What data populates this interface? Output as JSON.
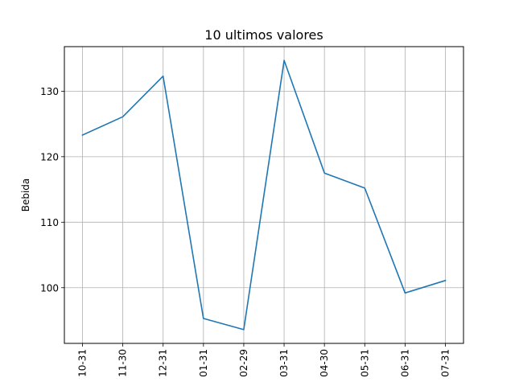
{
  "chart_data": {
    "type": "line",
    "title": "10 ultimos valores",
    "xlabel": "",
    "ylabel": "Bebida",
    "categories": [
      "10-31",
      "11-30",
      "12-31",
      "01-31",
      "02-29",
      "03-31",
      "04-30",
      "05-31",
      "06-31",
      "07-31"
    ],
    "series": [
      {
        "values": [
          123.3,
          126.1,
          132.3,
          95.3,
          93.6,
          134.7,
          117.5,
          115.2,
          99.2,
          101.1
        ]
      }
    ],
    "ylim": [
      91.5,
      136.8
    ],
    "yticks": [
      100,
      110,
      120,
      130
    ],
    "grid": true,
    "line_color": "#1f77b4",
    "grid_color": "#b0b0b0"
  }
}
